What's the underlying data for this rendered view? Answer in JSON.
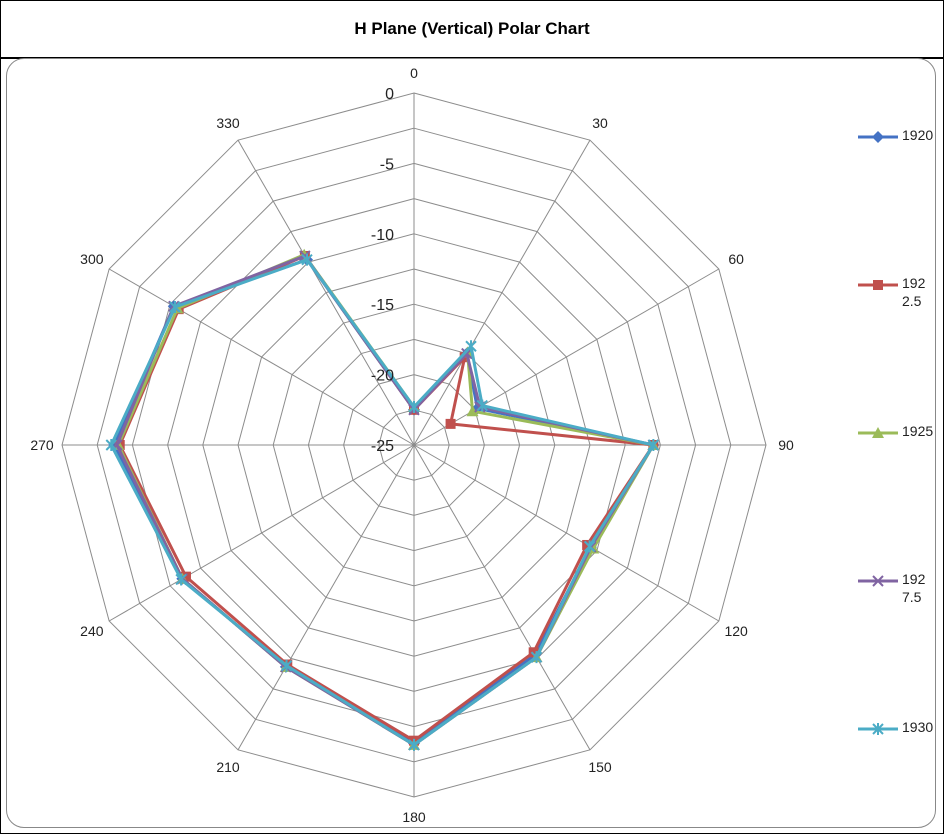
{
  "chart_data": {
    "type": "radar",
    "title": "H Plane (Vertical) Polar Chart",
    "angle_labels": [
      "0",
      "30",
      "60",
      "90",
      "120",
      "150",
      "180",
      "210",
      "240",
      "270",
      "300",
      "330"
    ],
    "radial_labels": [
      "0",
      "-5",
      "-10",
      "-15",
      "-20",
      "-25"
    ],
    "rlim": [
      -25,
      0
    ],
    "grid": true,
    "legend_position": "right",
    "series": [
      {
        "name": "1920",
        "color": "#4472C4",
        "marker": "diamond",
        "values": [
          -22.5,
          -17.5,
          -19.8,
          -8.0,
          -10.5,
          -7.8,
          -3.8,
          -6.8,
          -6.0,
          -3.7,
          -5.3,
          -9.8
        ]
      },
      {
        "name": "1922.5",
        "color": "#C0504D",
        "marker": "square",
        "values": [
          -22.5,
          -17.8,
          -22.0,
          -8.0,
          -10.8,
          -8.0,
          -4.0,
          -7.0,
          -6.3,
          -4.1,
          -5.7,
          -9.5
        ]
      },
      {
        "name": "1925",
        "color": "#9BBB59",
        "marker": "triangle",
        "values": [
          -22.3,
          -17.4,
          -20.2,
          -8.0,
          -10.3,
          -7.6,
          -3.7,
          -6.8,
          -6.0,
          -4.0,
          -5.6,
          -9.4
        ]
      },
      {
        "name": "1927.5",
        "color": "#8064A2",
        "marker": "x",
        "values": [
          -22.5,
          -17.5,
          -19.6,
          -8.0,
          -10.5,
          -7.6,
          -3.7,
          -6.8,
          -6.0,
          -3.9,
          -5.3,
          -9.5
        ]
      },
      {
        "name": "1930",
        "color": "#4BACC6",
        "marker": "star",
        "values": [
          -22.3,
          -16.9,
          -19.4,
          -8.0,
          -10.6,
          -7.6,
          -3.7,
          -6.9,
          -5.9,
          -3.5,
          -5.4,
          -9.8
        ]
      }
    ]
  }
}
